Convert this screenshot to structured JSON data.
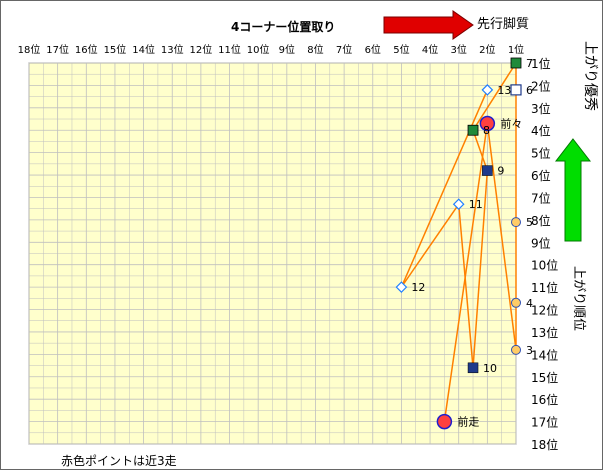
{
  "chart_data": {
    "type": "scatter",
    "title": "4コーナー位置取り",
    "top_arrow_label": "先行脚質",
    "right_up_label": "上がり優秀",
    "right_axis_label": "上がり順位",
    "footnote": "赤色ポイントは近3走",
    "x_ticks": [
      "18位",
      "17位",
      "16位",
      "15位",
      "14位",
      "13位",
      "12位",
      "11位",
      "10位",
      "9位",
      "8位",
      "7位",
      "6位",
      "5位",
      "4位",
      "3位",
      "2位",
      "1位"
    ],
    "y_ticks": [
      "1位",
      "2位",
      "3位",
      "4位",
      "5位",
      "6位",
      "7位",
      "8位",
      "9位",
      "10位",
      "11位",
      "12位",
      "13位",
      "14位",
      "15位",
      "16位",
      "17位",
      "18位"
    ],
    "x_range": [
      18,
      1
    ],
    "y_range": [
      1,
      18
    ],
    "grid": true,
    "colors": {
      "plot_bg": "#ffffcc",
      "grid": "#bfbfbf",
      "line": "#ff8000",
      "recent_fill": "#ff4040",
      "recent_stroke": "#1f1fcc",
      "circle_fill": "#ffcc66",
      "circle_stroke": "#3050b0",
      "square_fill": "#1f3a8a",
      "diamond_fill": "#ffffff",
      "diamond_stroke": "#2080ff",
      "top_arrow": "#e00000",
      "up_arrow": "#00dd00"
    },
    "path_order": [
      "前走",
      "前々",
      "3",
      "4",
      "5",
      "6",
      "7",
      "8",
      "9",
      "10",
      "11",
      "12",
      "13"
    ],
    "points": [
      {
        "label": "前走",
        "x": 3.5,
        "y": 17.0,
        "marker": "recent"
      },
      {
        "label": "前々",
        "x": 2.0,
        "y": 3.7,
        "marker": "recent"
      },
      {
        "label": "3",
        "x": 1.0,
        "y": 13.8,
        "marker": "circle"
      },
      {
        "label": "4",
        "x": 1.0,
        "y": 11.7,
        "marker": "circle"
      },
      {
        "label": "5",
        "x": 1.0,
        "y": 8.1,
        "marker": "circle"
      },
      {
        "label": "6",
        "x": 1.0,
        "y": 2.2,
        "marker": "square_open"
      },
      {
        "label": "7",
        "x": 1.0,
        "y": 1.0,
        "marker": "square_green"
      },
      {
        "label": "8",
        "x": 2.5,
        "y": 4.0,
        "marker": "square_green"
      },
      {
        "label": "9",
        "x": 2.0,
        "y": 5.8,
        "marker": "square"
      },
      {
        "label": "10",
        "x": 2.5,
        "y": 14.6,
        "marker": "square"
      },
      {
        "label": "11",
        "x": 3.0,
        "y": 7.3,
        "marker": "diamond"
      },
      {
        "label": "12",
        "x": 5.0,
        "y": 11.0,
        "marker": "diamond"
      },
      {
        "label": "13",
        "x": 2.0,
        "y": 2.2,
        "marker": "diamond"
      }
    ]
  }
}
